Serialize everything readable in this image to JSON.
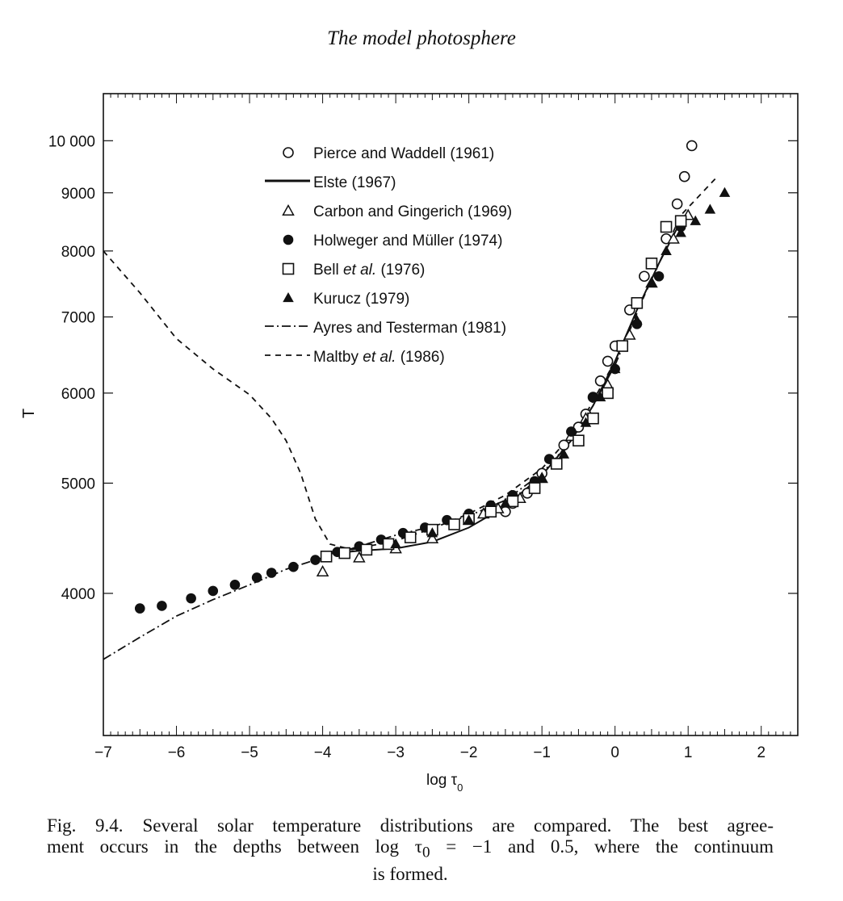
{
  "header": {
    "running_title": "The model photosphere"
  },
  "caption": {
    "figure_number": "Fig. 9.4.",
    "line1": "Several solar temperature distributions are compared. The best agree-",
    "line2_pre": "ment occurs in the depths between log τ",
    "line2_sub": "0",
    "line2_post": " = −1 and 0.5, where the continuum",
    "line3": "is formed."
  },
  "chart_data": {
    "type": "scatter",
    "xlabel": "log τ0",
    "ylabel": "T",
    "xlim": [
      -7,
      2.5
    ],
    "ylim": [
      3000,
      11000
    ],
    "y_scale": "log",
    "x_ticks": [
      -7,
      -6,
      -5,
      -4,
      -3,
      -2,
      -1,
      0,
      1,
      2
    ],
    "x_tick_labels": [
      "−7",
      "−6",
      "−5",
      "−4",
      "−3",
      "−2",
      "−1",
      "0",
      "1",
      "2"
    ],
    "y_ticks": [
      4000,
      5000,
      6000,
      7000,
      8000,
      9000,
      10000
    ],
    "y_tick_labels": [
      "4000",
      "5000",
      "6000",
      "7000",
      "8000",
      "9000",
      "10 000"
    ],
    "legend_position": "top-center",
    "series": [
      {
        "name": "Pierce and Waddell (1961)",
        "marker": "open-circle",
        "x": [
          -1.5,
          -1.4,
          -1.2,
          -1.0,
          -0.7,
          -0.5,
          -0.4,
          -0.3,
          -0.2,
          -0.1,
          0.0,
          0.2,
          0.4,
          0.7,
          0.85,
          0.95,
          1.05
        ],
        "y": [
          4720,
          4800,
          4900,
          5100,
          5400,
          5600,
          5750,
          5950,
          6150,
          6400,
          6600,
          7100,
          7600,
          8200,
          8800,
          9300,
          9900
        ]
      },
      {
        "name": "Elste (1967)",
        "style": "solid",
        "x": [
          -4.0,
          -3.5,
          -3.0,
          -2.5,
          -2.0,
          -1.5,
          -1.0,
          -0.6,
          -0.3,
          0.0,
          0.3,
          0.6,
          0.9
        ],
        "y": [
          4330,
          4360,
          4380,
          4440,
          4570,
          4770,
          5080,
          5450,
          5850,
          6400,
          7100,
          7800,
          8500
        ]
      },
      {
        "name": "Carbon and Gingerich (1969)",
        "marker": "open-triangle",
        "x": [
          -4.0,
          -3.5,
          -3.0,
          -2.5,
          -2.0,
          -1.8,
          -1.6,
          -1.3,
          -1.0,
          -0.6,
          -0.4,
          -0.1,
          0.2,
          0.5,
          0.8,
          1.0
        ],
        "y": [
          4180,
          4300,
          4380,
          4470,
          4640,
          4700,
          4750,
          4850,
          5050,
          5500,
          5700,
          6100,
          6750,
          7500,
          8200,
          8600
        ]
      },
      {
        "name": "Holweger and Müller (1974)",
        "marker": "filled-circle",
        "x": [
          -6.5,
          -6.2,
          -5.8,
          -5.5,
          -5.2,
          -4.9,
          -4.7,
          -4.4,
          -4.1,
          -3.8,
          -3.5,
          -3.2,
          -2.9,
          -2.6,
          -2.3,
          -2.0,
          -1.7,
          -1.4,
          -1.1,
          -0.9,
          -0.6,
          -0.3,
          0.0,
          0.3,
          0.6,
          0.9
        ],
        "y": [
          3880,
          3900,
          3960,
          4020,
          4070,
          4130,
          4170,
          4220,
          4280,
          4350,
          4400,
          4460,
          4520,
          4570,
          4640,
          4700,
          4780,
          4880,
          5020,
          5250,
          5550,
          5950,
          6300,
          6900,
          7600,
          8400
        ]
      },
      {
        "name": "Bell et al. (1976)",
        "marker": "open-square",
        "x": [
          -3.95,
          -3.7,
          -3.4,
          -3.1,
          -2.8,
          -2.5,
          -2.2,
          -2.0,
          -1.7,
          -1.4,
          -1.1,
          -0.8,
          -0.5,
          -0.3,
          -0.1,
          0.1,
          0.3,
          0.5,
          0.7,
          0.9
        ],
        "y": [
          4310,
          4340,
          4370,
          4420,
          4480,
          4550,
          4600,
          4650,
          4720,
          4820,
          4950,
          5200,
          5450,
          5700,
          6000,
          6600,
          7200,
          7800,
          8400,
          8500
        ]
      },
      {
        "name": "Kurucz (1979)",
        "marker": "filled-triangle",
        "x": [
          -3.0,
          -2.5,
          -2.0,
          -1.5,
          -1.0,
          -0.7,
          -0.4,
          -0.2,
          0.0,
          0.3,
          0.5,
          0.7,
          0.9,
          1.1,
          1.3,
          1.5
        ],
        "y": [
          4420,
          4520,
          4640,
          4800,
          5050,
          5300,
          5650,
          5950,
          6300,
          6950,
          7500,
          8000,
          8300,
          8500,
          8700,
          9000
        ]
      },
      {
        "name": "Ayres and Testerman (1981)",
        "style": "dash-dot",
        "x": [
          -7.0,
          -6.5,
          -6.0,
          -5.5,
          -5.0,
          -4.5,
          -4.0,
          -3.5,
          -3.0,
          -2.5,
          -2.0,
          -1.5,
          -1.0,
          -0.6,
          -0.3,
          0.0,
          0.3
        ],
        "y": [
          3500,
          3660,
          3820,
          3950,
          4070,
          4200,
          4300,
          4400,
          4500,
          4580,
          4680,
          4830,
          5100,
          5450,
          5850,
          6350,
          7050
        ]
      },
      {
        "name": "Maltby et al. (1986)",
        "style": "dashed",
        "x": [
          -7.0,
          -6.5,
          -6.0,
          -5.5,
          -5.0,
          -4.7,
          -4.5,
          -4.3,
          -4.1,
          -3.9,
          -3.6,
          -3.0,
          -2.5,
          -2.0,
          -1.5,
          -1.0,
          -0.5,
          0.0,
          0.5,
          0.9,
          1.4
        ],
        "y": [
          8000,
          7350,
          6700,
          6300,
          5980,
          5700,
          5450,
          5100,
          4650,
          4420,
          4370,
          4450,
          4560,
          4700,
          4880,
          5150,
          5600,
          6400,
          7550,
          8600,
          9300
        ]
      }
    ]
  }
}
